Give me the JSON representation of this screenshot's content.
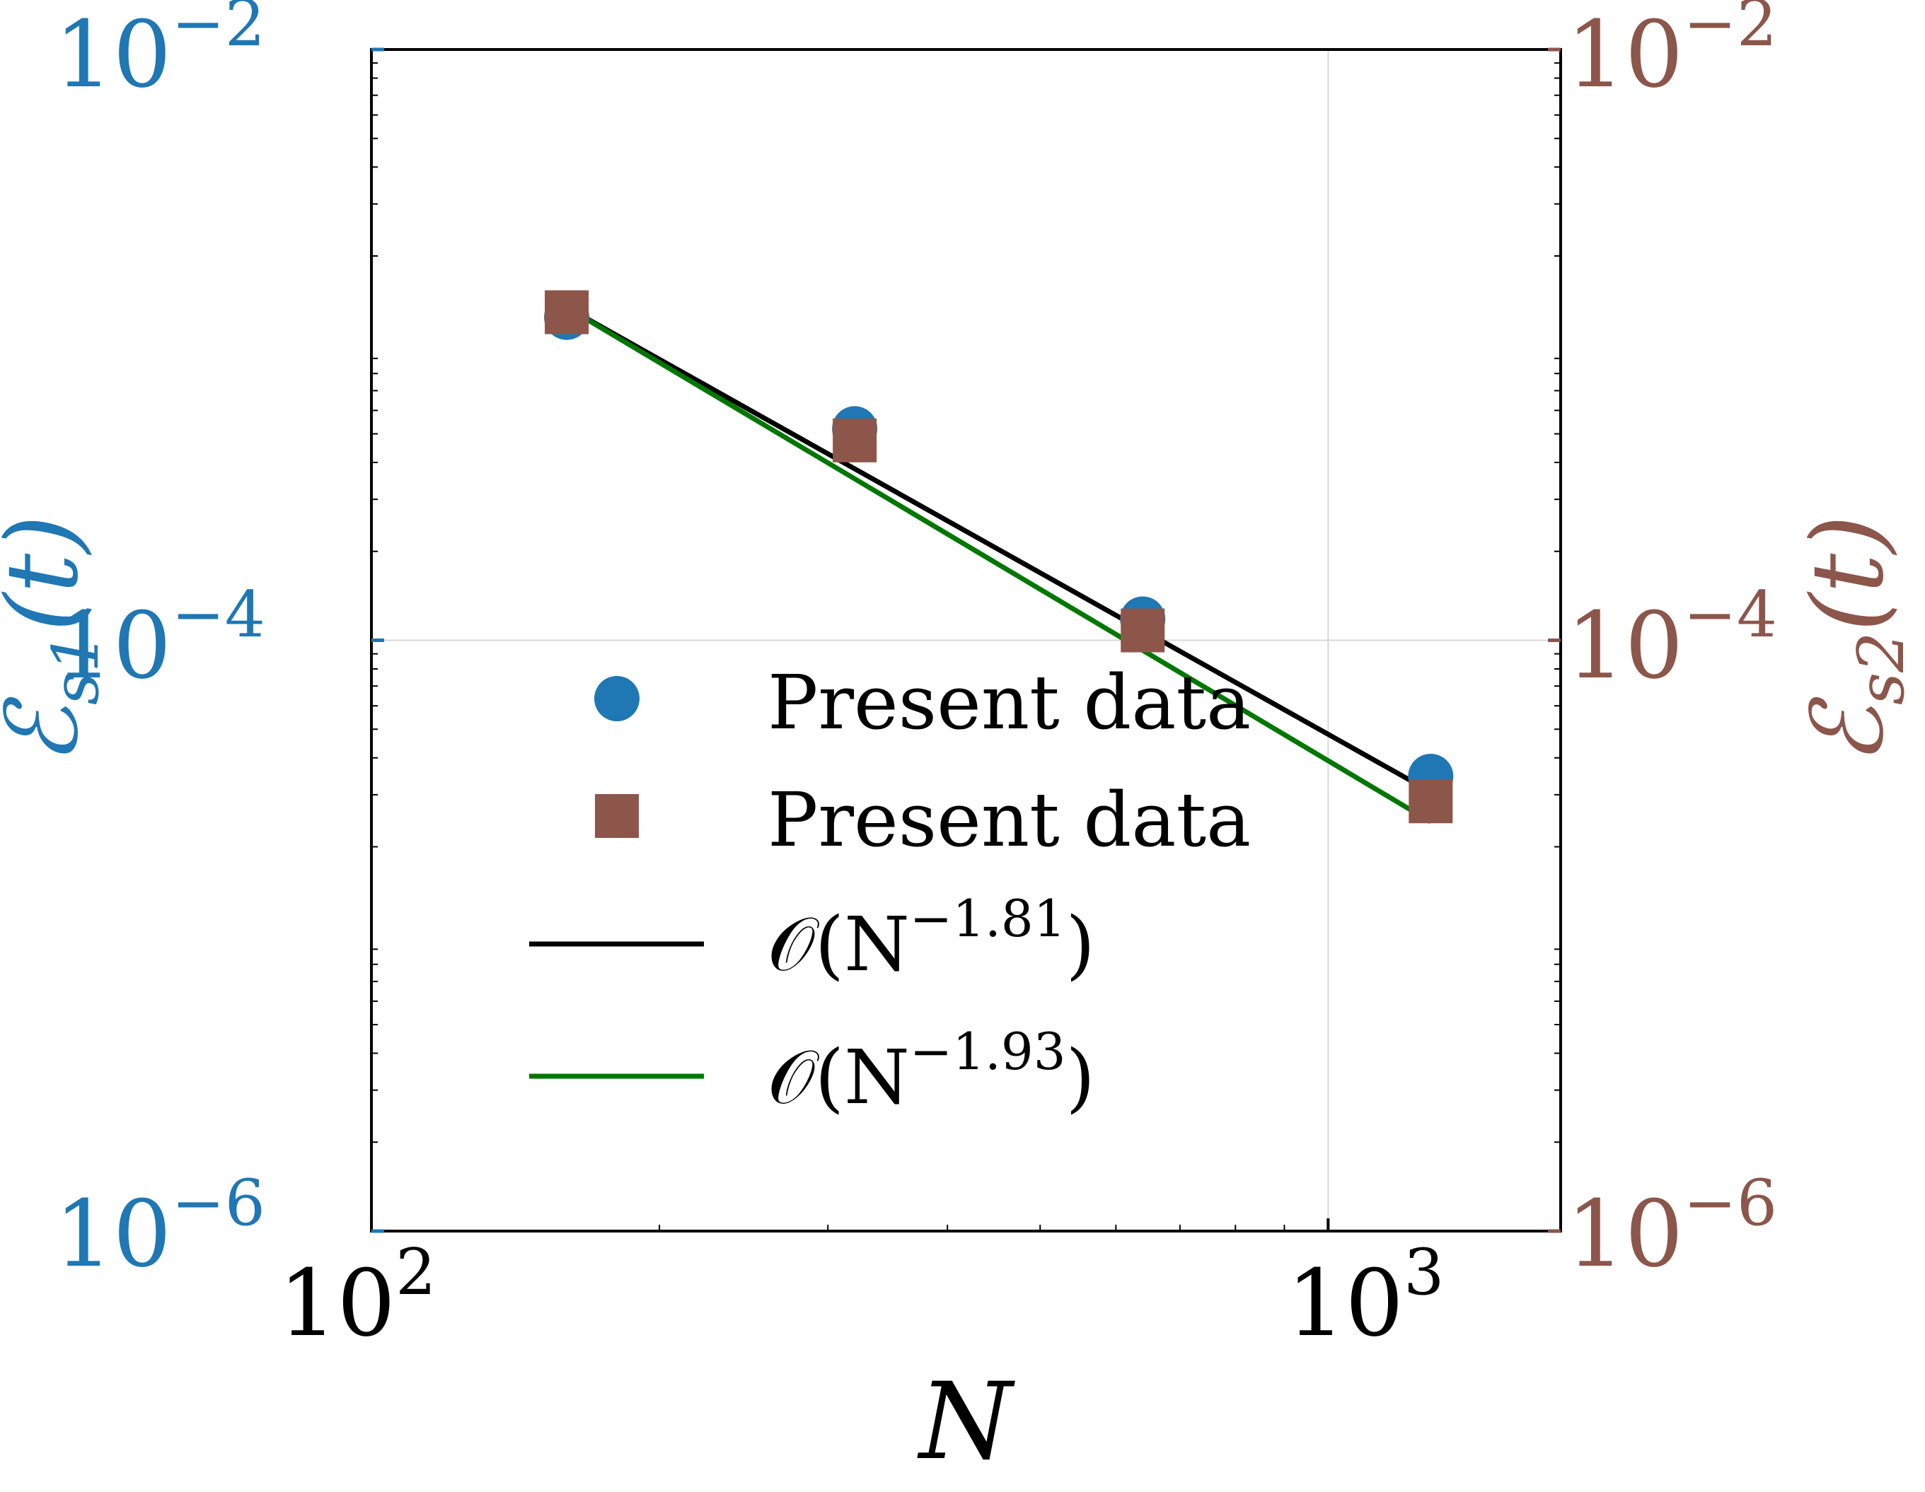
{
  "chart_data": {
    "type": "scatter",
    "x_axis": {
      "label": "N",
      "scale": "log",
      "range": [
        100,
        1750
      ],
      "ticks": [
        {
          "value": 100,
          "base": "10",
          "exp": "2"
        },
        {
          "value": 1000,
          "base": "10",
          "exp": "3"
        }
      ]
    },
    "y_left": {
      "label_base": "ℰ",
      "label_sub": "s1",
      "label_tail": "(t)",
      "scale": "log",
      "range": [
        1e-06,
        0.01
      ],
      "color": "#1f77b4",
      "ticks": [
        {
          "value": 0.01,
          "base": "10",
          "exp": "−2"
        },
        {
          "value": 0.0001,
          "base": "10",
          "exp": "−4"
        },
        {
          "value": 1e-06,
          "base": "10",
          "exp": "−6"
        }
      ]
    },
    "y_right": {
      "label_base": "ℰ",
      "label_sub": "s2",
      "label_tail": "(t)",
      "scale": "log",
      "range": [
        1e-06,
        0.01
      ],
      "color": "#8c564b",
      "ticks": [
        {
          "value": 0.01,
          "base": "10",
          "exp": "−2"
        },
        {
          "value": 0.0001,
          "base": "10",
          "exp": "−4"
        },
        {
          "value": 1e-06,
          "base": "10",
          "exp": "−6"
        }
      ]
    },
    "series": [
      {
        "name": "Present data",
        "marker": "circle",
        "axis": "left",
        "color": "#1f77b4",
        "x": [
          160,
          320,
          640,
          1280
        ],
        "y": [
          0.00124,
          0.00052,
          0.000118,
          3.46e-05
        ]
      },
      {
        "name": "Present data",
        "marker": "square",
        "axis": "right",
        "color": "#8c564b",
        "x": [
          160,
          320,
          640,
          1280
        ],
        "y": [
          0.00129,
          0.000475,
          0.000108,
          2.85e-05
        ]
      },
      {
        "name": "O(N^-1.81)",
        "marker": "line",
        "color": "#000000",
        "legend_text": "𝒪(N",
        "legend_exp": "−1.81",
        "legend_close": ")",
        "x": [
          160,
          1280
        ],
        "y": [
          0.00134,
          3.07e-05
        ]
      },
      {
        "name": "O(N^-1.93)",
        "marker": "line",
        "color": "#007700",
        "legend_text": "𝒪(N",
        "legend_exp": "−1.93",
        "legend_close": ")",
        "x": [
          160,
          1280
        ],
        "y": [
          0.00134,
          2.43e-05
        ]
      }
    ],
    "grid": true,
    "legend_position": "lower-left"
  }
}
